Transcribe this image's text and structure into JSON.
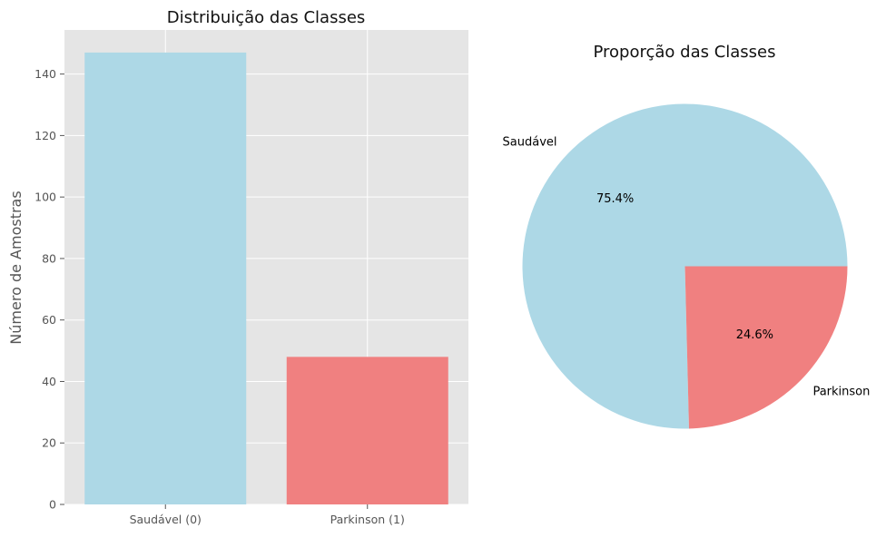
{
  "chart_data": [
    {
      "type": "bar",
      "title": "Distribuição das Classes",
      "xlabel": "",
      "ylabel": "Número de Amostras",
      "categories": [
        "Saudável (0)",
        "Parkinson (1)"
      ],
      "values": [
        147,
        48
      ],
      "colors": [
        "#add8e6",
        "#f08080"
      ],
      "ylim": [
        0,
        154.35
      ],
      "yticks": [
        0,
        20,
        40,
        60,
        80,
        100,
        120,
        140
      ],
      "grid": true,
      "background": "#e5e5e5"
    },
    {
      "type": "pie",
      "title": "Proporção das Classes",
      "labels": [
        "Saudável",
        "Parkinson"
      ],
      "values": [
        75.4,
        24.6
      ],
      "percent_labels": [
        "75.4%",
        "24.6%"
      ],
      "colors": [
        "#add8e6",
        "#f08080"
      ]
    }
  ]
}
